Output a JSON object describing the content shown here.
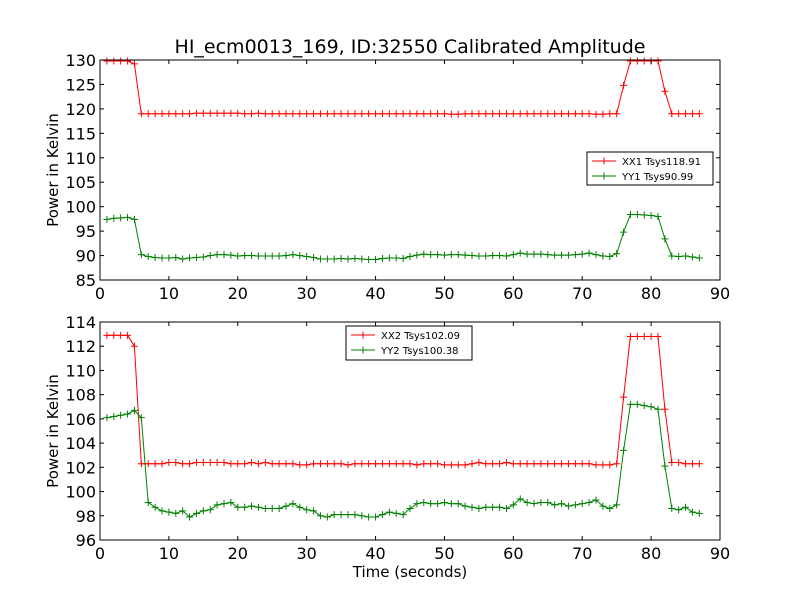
{
  "figure": {
    "title": "HI_ecm0013_169, ID:32550 Calibrated Amplitude",
    "xlabel": "Time (seconds)"
  },
  "chart_data": [
    {
      "type": "line",
      "ylabel": "Power in Kelvin",
      "xlim": [
        0,
        90
      ],
      "ylim": [
        85,
        130
      ],
      "xticks": [
        0,
        10,
        20,
        30,
        40,
        50,
        60,
        70,
        80,
        90
      ],
      "yticks": [
        85,
        90,
        95,
        100,
        105,
        110,
        115,
        120,
        125,
        130
      ],
      "legend": "center-right",
      "grid": false,
      "x": [
        1,
        2,
        3,
        4,
        5,
        6,
        7,
        8,
        9,
        10,
        11,
        12,
        13,
        14,
        15,
        16,
        17,
        18,
        19,
        20,
        21,
        22,
        23,
        24,
        25,
        26,
        27,
        28,
        29,
        30,
        31,
        32,
        33,
        34,
        35,
        36,
        37,
        38,
        39,
        40,
        41,
        42,
        43,
        44,
        45,
        46,
        47,
        48,
        49,
        50,
        51,
        52,
        53,
        54,
        55,
        56,
        57,
        58,
        59,
        60,
        61,
        62,
        63,
        64,
        65,
        66,
        67,
        68,
        69,
        70,
        71,
        72,
        73,
        74,
        75,
        76,
        77,
        78,
        79,
        80,
        81,
        82,
        83,
        84,
        85,
        86,
        87
      ],
      "series": [
        {
          "name": "XX1 Tsys118.91",
          "color": "#ff0000",
          "values": [
            129.8,
            129.8,
            129.8,
            129.8,
            129.2,
            119.0,
            119.0,
            119.0,
            119.0,
            119.0,
            119.0,
            119.0,
            119.0,
            119.1,
            119.1,
            119.1,
            119.1,
            119.1,
            119.1,
            119.1,
            119.0,
            119.0,
            119.1,
            119.0,
            119.0,
            119.0,
            119.0,
            119.0,
            119.0,
            119.0,
            119.0,
            119.0,
            119.0,
            119.0,
            119.0,
            119.0,
            119.0,
            119.0,
            119.0,
            119.0,
            119.0,
            119.0,
            119.0,
            119.0,
            119.0,
            119.0,
            119.0,
            119.0,
            119.0,
            119.0,
            118.9,
            118.9,
            119.0,
            119.0,
            119.0,
            119.0,
            119.0,
            119.0,
            119.0,
            119.0,
            119.0,
            119.0,
            119.0,
            119.0,
            119.0,
            119.0,
            119.0,
            119.0,
            119.0,
            119.0,
            119.0,
            118.9,
            118.9,
            119.0,
            119.0,
            124.8,
            129.8,
            129.8,
            129.8,
            129.8,
            129.8,
            123.6,
            119.0,
            119.0,
            119.0,
            119.0,
            119.0
          ]
        },
        {
          "name": "YY1 Tsys90.99",
          "color": "#008000",
          "values": [
            97.4,
            97.6,
            97.7,
            97.8,
            97.4,
            90.2,
            89.8,
            89.6,
            89.5,
            89.5,
            89.6,
            89.3,
            89.5,
            89.6,
            89.7,
            90.0,
            90.2,
            90.2,
            90.1,
            89.9,
            90.0,
            90.0,
            89.9,
            89.9,
            89.9,
            89.9,
            90.0,
            90.2,
            90.0,
            89.8,
            89.6,
            89.3,
            89.3,
            89.3,
            89.4,
            89.3,
            89.4,
            89.3,
            89.2,
            89.2,
            89.4,
            89.5,
            89.5,
            89.4,
            89.8,
            90.1,
            90.3,
            90.2,
            90.2,
            90.1,
            90.2,
            90.2,
            90.1,
            90.0,
            89.9,
            89.9,
            90.0,
            90.0,
            89.9,
            90.2,
            90.5,
            90.3,
            90.3,
            90.3,
            90.2,
            90.1,
            90.1,
            90.1,
            90.2,
            90.3,
            90.5,
            90.2,
            89.9,
            89.8,
            90.4,
            94.8,
            98.4,
            98.4,
            98.3,
            98.2,
            98.0,
            93.4,
            89.9,
            89.8,
            89.9,
            89.7,
            89.5
          ]
        }
      ]
    },
    {
      "type": "line",
      "ylabel": "Power in Kelvin",
      "xlim": [
        0,
        90
      ],
      "ylim": [
        96,
        114
      ],
      "xticks": [
        0,
        10,
        20,
        30,
        40,
        50,
        60,
        70,
        80,
        90
      ],
      "yticks": [
        96,
        98,
        100,
        102,
        104,
        106,
        108,
        110,
        112,
        114
      ],
      "legend": "upper-center",
      "grid": false,
      "x": [
        1,
        2,
        3,
        4,
        5,
        6,
        7,
        8,
        9,
        10,
        11,
        12,
        13,
        14,
        15,
        16,
        17,
        18,
        19,
        20,
        21,
        22,
        23,
        24,
        25,
        26,
        27,
        28,
        29,
        30,
        31,
        32,
        33,
        34,
        35,
        36,
        37,
        38,
        39,
        40,
        41,
        42,
        43,
        44,
        45,
        46,
        47,
        48,
        49,
        50,
        51,
        52,
        53,
        54,
        55,
        56,
        57,
        58,
        59,
        60,
        61,
        62,
        63,
        64,
        65,
        66,
        67,
        68,
        69,
        70,
        71,
        72,
        73,
        74,
        75,
        76,
        77,
        78,
        79,
        80,
        81,
        82,
        83,
        84,
        85,
        86,
        87
      ],
      "series": [
        {
          "name": "XX2 Tsys102.09",
          "color": "#ff0000",
          "values": [
            112.9,
            112.9,
            112.9,
            112.9,
            112.0,
            102.3,
            102.3,
            102.3,
            102.3,
            102.4,
            102.4,
            102.3,
            102.3,
            102.4,
            102.4,
            102.4,
            102.4,
            102.4,
            102.3,
            102.3,
            102.3,
            102.4,
            102.3,
            102.4,
            102.3,
            102.3,
            102.3,
            102.3,
            102.2,
            102.2,
            102.3,
            102.3,
            102.3,
            102.3,
            102.3,
            102.2,
            102.3,
            102.3,
            102.3,
            102.3,
            102.3,
            102.3,
            102.3,
            102.3,
            102.3,
            102.2,
            102.3,
            102.3,
            102.3,
            102.2,
            102.2,
            102.2,
            102.2,
            102.3,
            102.4,
            102.3,
            102.3,
            102.3,
            102.4,
            102.3,
            102.3,
            102.3,
            102.3,
            102.3,
            102.3,
            102.3,
            102.3,
            102.3,
            102.3,
            102.3,
            102.3,
            102.2,
            102.2,
            102.2,
            102.3,
            107.8,
            112.8,
            112.8,
            112.8,
            112.8,
            112.8,
            106.8,
            102.4,
            102.4,
            102.3,
            102.3,
            102.3
          ]
        },
        {
          "name": "YY2 Tsys100.38",
          "color": "#008000",
          "values": [
            106.1,
            106.2,
            106.3,
            106.4,
            106.7,
            106.1,
            99.1,
            98.7,
            98.4,
            98.3,
            98.2,
            98.4,
            97.9,
            98.2,
            98.4,
            98.5,
            98.9,
            99.0,
            99.1,
            98.7,
            98.7,
            98.8,
            98.7,
            98.6,
            98.6,
            98.6,
            98.8,
            99.0,
            98.7,
            98.5,
            98.4,
            98.0,
            97.9,
            98.1,
            98.1,
            98.1,
            98.1,
            98.0,
            97.9,
            97.9,
            98.1,
            98.3,
            98.2,
            98.1,
            98.6,
            99.0,
            99.1,
            99.0,
            99.0,
            99.1,
            99.0,
            99.0,
            98.8,
            98.7,
            98.6,
            98.7,
            98.7,
            98.7,
            98.6,
            98.9,
            99.4,
            99.1,
            99.0,
            99.1,
            99.1,
            98.9,
            99.0,
            98.8,
            98.9,
            99.0,
            99.1,
            99.3,
            98.8,
            98.6,
            98.9,
            103.4,
            107.2,
            107.2,
            107.1,
            107.0,
            106.8,
            102.1,
            98.6,
            98.5,
            98.7,
            98.3,
            98.2
          ]
        }
      ]
    }
  ]
}
